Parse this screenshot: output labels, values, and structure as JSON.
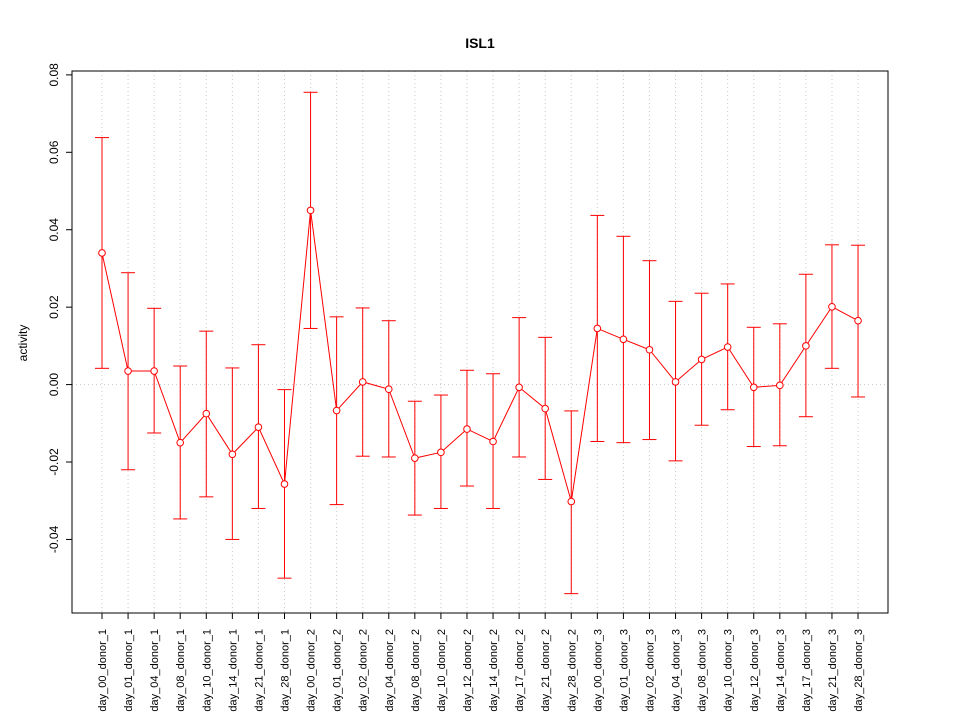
{
  "chart_data": {
    "type": "line",
    "title": "ISL1",
    "xlabel": "",
    "ylabel": "activity",
    "ylim": [
      -0.059,
      0.081
    ],
    "y_ticks": [
      -0.04,
      -0.02,
      0.0,
      0.02,
      0.04,
      0.06,
      0.08
    ],
    "y_tick_labels": [
      "-0.04",
      "-0.02",
      "0.00",
      "0.02",
      "0.04",
      "0.06",
      "0.08"
    ],
    "grid": "vertical dotted at each category, horizontal dotted at 0",
    "series_color": "#ff0000",
    "grid_color": "#c8c8c8",
    "categories": [
      "day_00_donor_1",
      "day_01_donor_1",
      "day_04_donor_1",
      "day_08_donor_1",
      "day_10_donor_1",
      "day_14_donor_1",
      "day_21_donor_1",
      "day_28_donor_1",
      "day_00_donor_2",
      "day_01_donor_2",
      "day_02_donor_2",
      "day_04_donor_2",
      "day_08_donor_2",
      "day_10_donor_2",
      "day_12_donor_2",
      "day_14_donor_2",
      "day_17_donor_2",
      "day_21_donor_2",
      "day_28_donor_2",
      "day_00_donor_3",
      "day_01_donor_3",
      "day_02_donor_3",
      "day_04_donor_3",
      "day_08_donor_3",
      "day_10_donor_3",
      "day_12_donor_3",
      "day_14_donor_3",
      "day_17_donor_3",
      "day_21_donor_3",
      "day_28_donor_3"
    ],
    "series": [
      {
        "values": [
          0.034,
          0.0035,
          0.0035,
          -0.015,
          -0.0075,
          -0.018,
          -0.011,
          -0.0257,
          0.045,
          -0.0067,
          0.0007,
          -0.0012,
          -0.019,
          -0.0175,
          -0.0115,
          -0.0147,
          -0.0007,
          -0.0062,
          -0.0302,
          0.0145,
          0.0117,
          0.009,
          0.0007,
          0.0065,
          0.0097,
          -0.0007,
          -0.0002,
          0.01,
          0.0201,
          0.0165
        ],
        "lower": [
          0.0042,
          -0.022,
          -0.0125,
          -0.0347,
          -0.029,
          -0.04,
          -0.032,
          -0.05,
          0.0145,
          -0.031,
          -0.0185,
          -0.0187,
          -0.0337,
          -0.032,
          -0.0262,
          -0.032,
          -0.0187,
          -0.0245,
          -0.054,
          -0.0147,
          -0.015,
          -0.0142,
          -0.0197,
          -0.0105,
          -0.0065,
          -0.016,
          -0.0158,
          -0.0083,
          0.0042,
          -0.0032
        ],
        "upper": [
          0.0638,
          0.0289,
          0.0197,
          0.0048,
          0.0138,
          0.0043,
          0.0103,
          -0.0013,
          0.0755,
          0.0175,
          0.0198,
          0.0165,
          -0.0043,
          -0.0027,
          0.0037,
          0.0028,
          0.0173,
          0.0122,
          -0.0068,
          0.0437,
          0.0383,
          0.032,
          0.0215,
          0.0236,
          0.026,
          0.0148,
          0.0157,
          0.0285,
          0.0361,
          0.036
        ]
      }
    ]
  }
}
